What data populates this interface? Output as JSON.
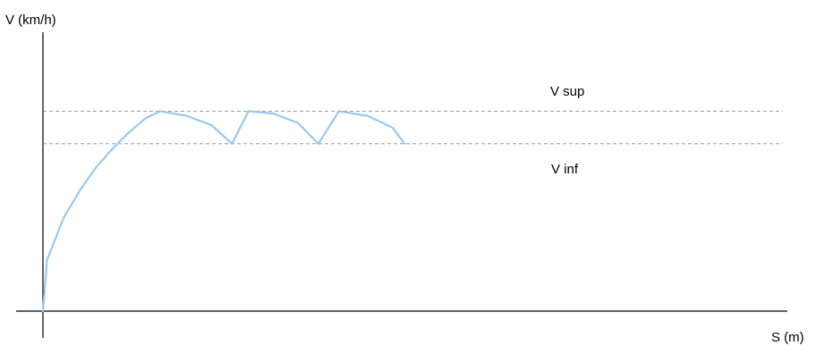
{
  "chart_data": {
    "type": "line",
    "xlabel": "S (m)",
    "ylabel": "V (km/h)",
    "reference_lines": [
      {
        "label": "V sup",
        "y": 0.86
      },
      {
        "label": "V inf",
        "y": 0.72
      }
    ],
    "series": [
      {
        "color": "#9ac8f0",
        "points": [
          [
            0.0,
            0.0
          ],
          [
            0.01,
            0.22
          ],
          [
            0.05,
            0.4
          ],
          [
            0.09,
            0.52
          ],
          [
            0.13,
            0.62
          ],
          [
            0.17,
            0.7
          ],
          [
            0.21,
            0.77
          ],
          [
            0.25,
            0.83
          ],
          [
            0.285,
            0.86
          ],
          [
            0.35,
            0.84
          ],
          [
            0.41,
            0.8
          ],
          [
            0.46,
            0.72
          ],
          [
            0.5,
            0.86
          ],
          [
            0.56,
            0.85
          ],
          [
            0.62,
            0.81
          ],
          [
            0.67,
            0.72
          ],
          [
            0.72,
            0.86
          ],
          [
            0.79,
            0.84
          ],
          [
            0.85,
            0.79
          ],
          [
            0.88,
            0.72
          ]
        ]
      }
    ],
    "xlim": [
      0,
      1.8
    ],
    "ylim": [
      0,
      1.2
    ],
    "grid": false,
    "legend": "none",
    "annotations": [
      "V sup",
      "V inf"
    ]
  }
}
